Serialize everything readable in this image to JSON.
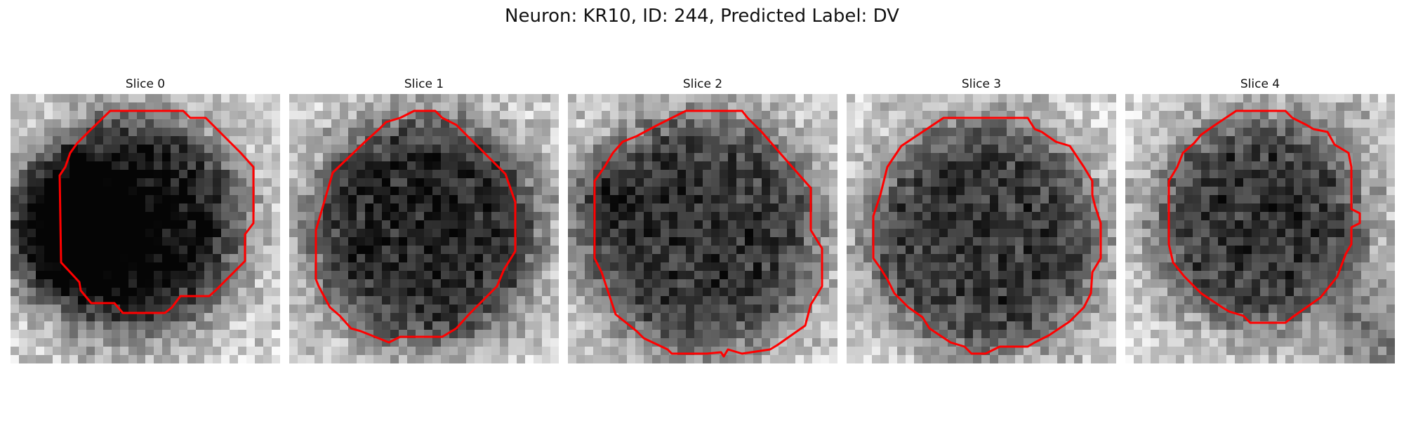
{
  "figure": {
    "title": "Neuron: KR10, ID: 244, Predicted Label: DV",
    "outline_color": "#ff0000"
  },
  "slices": [
    {
      "title": "Slice 0"
    },
    {
      "title": "Slice 1"
    },
    {
      "title": "Slice 2"
    },
    {
      "title": "Slice 3"
    },
    {
      "title": "Slice 4"
    }
  ]
}
